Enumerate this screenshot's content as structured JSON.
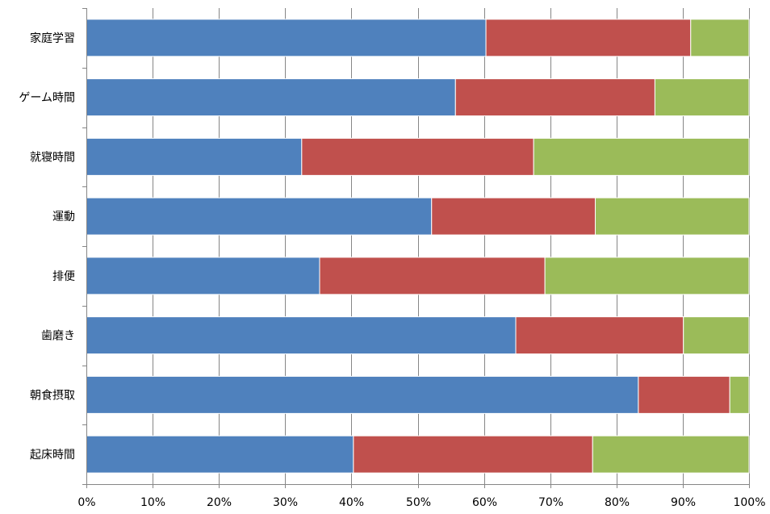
{
  "chart_data": {
    "type": "bar",
    "orientation": "horizontal",
    "stacked": "percent",
    "categories": [
      "家庭学習",
      "ゲーム時間",
      "就寝時間",
      "運動",
      "排便",
      "歯磨き",
      "朝食摂取",
      "起床時間"
    ],
    "series": [
      {
        "color": "#4F81BD",
        "values": [
          60.3,
          55.7,
          32.5,
          52.1,
          35.2,
          64.8,
          83.3,
          40.3
        ]
      },
      {
        "color": "#C0504D",
        "values": [
          30.9,
          30.1,
          35.0,
          24.7,
          34.0,
          25.3,
          13.8,
          36.1
        ]
      },
      {
        "color": "#9BBB59",
        "values": [
          8.8,
          14.2,
          32.5,
          23.2,
          30.8,
          9.9,
          2.9,
          23.6
        ]
      }
    ],
    "xticks": [
      "0%",
      "10%",
      "20%",
      "30%",
      "40%",
      "50%",
      "60%",
      "70%",
      "80%",
      "90%",
      "100%"
    ],
    "xlim": [
      0,
      100
    ],
    "grid": "vertical",
    "legend": "none",
    "title": "",
    "xlabel": "",
    "ylabel": ""
  }
}
